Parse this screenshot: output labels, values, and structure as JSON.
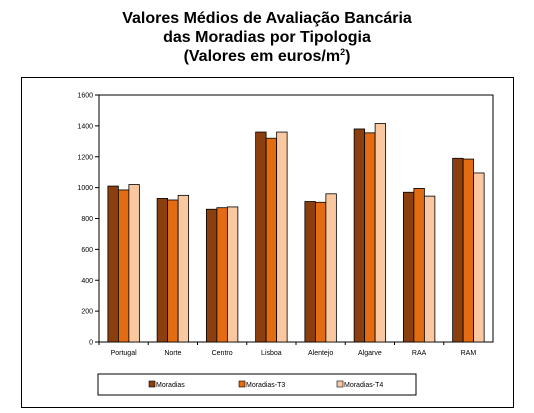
{
  "chart_data": {
    "type": "bar",
    "title_lines": [
      "Valores Médios de Avaliação Bancária",
      "das Moradias por Tipologia",
      "(Valores em euros/m"
    ],
    "title_superscript": "2",
    "title_suffix": ")",
    "categories": [
      "Portugal",
      "Norte",
      "Centro",
      "Lisboa",
      "Alentejo",
      "Algarve",
      "RAA",
      "RAM"
    ],
    "series": [
      {
        "name": "Moradias",
        "color": "#8B3F0F",
        "values": [
          1010,
          930,
          860,
          1360,
          910,
          1380,
          970,
          1190
        ]
      },
      {
        "name": "Moradias-T3",
        "color": "#E36B12",
        "values": [
          985,
          920,
          870,
          1320,
          905,
          1355,
          995,
          1185
        ]
      },
      {
        "name": "Moradias-T4",
        "color": "#FAC8A0",
        "values": [
          1020,
          950,
          875,
          1360,
          960,
          1415,
          945,
          1095
        ]
      }
    ],
    "ylim": [
      0,
      1600
    ],
    "yticks": [
      0,
      200,
      400,
      600,
      800,
      1000,
      1200,
      1400,
      1600
    ],
    "grid": false,
    "legend_position": "bottom"
  }
}
